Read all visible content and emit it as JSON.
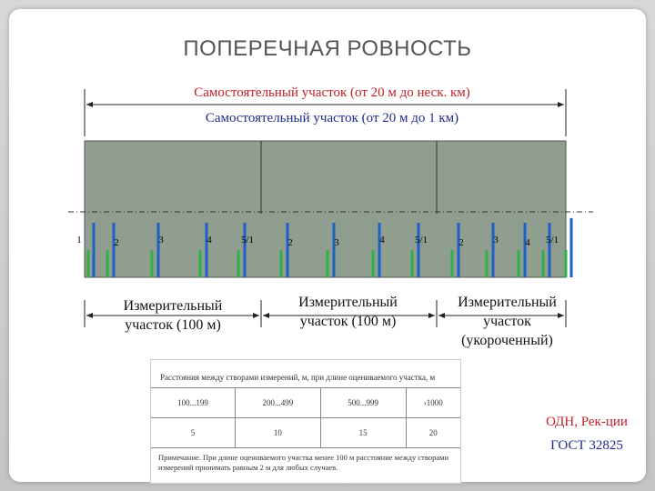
{
  "header": {
    "title": "ПОПЕРЕЧНАЯ РОВНОСТЬ"
  },
  "spans": [
    "Самостоятельный участок (от 20 м до неск. км)",
    "Самостоятельный участок (от 20 м до 1 км)"
  ],
  "markers": [
    "1",
    "2",
    "3",
    "4",
    "5/1",
    "2",
    "3",
    "4",
    "5/1",
    "2",
    "3",
    "4",
    "5/1"
  ],
  "sections": [
    "Измерительный участок (100 м)",
    "Измерительный участок (100 м)",
    "Измерительный участок (укороченный)"
  ],
  "table": {
    "header": "Расстояния между створами измерений, м, при длине оцениваемого участка, м",
    "rows": [
      [
        "100...199",
        "200...499",
        "500...999",
        "›1000"
      ],
      [
        "5",
        "10",
        "15",
        "20"
      ]
    ],
    "note": "Примечание. При длине оцениваемого участка менее 100 м расстояние между створами измерений принимать равным 2 м для любых случаев."
  },
  "source": [
    "ОДН, Рек-ции",
    "ГОСТ 32825"
  ]
}
